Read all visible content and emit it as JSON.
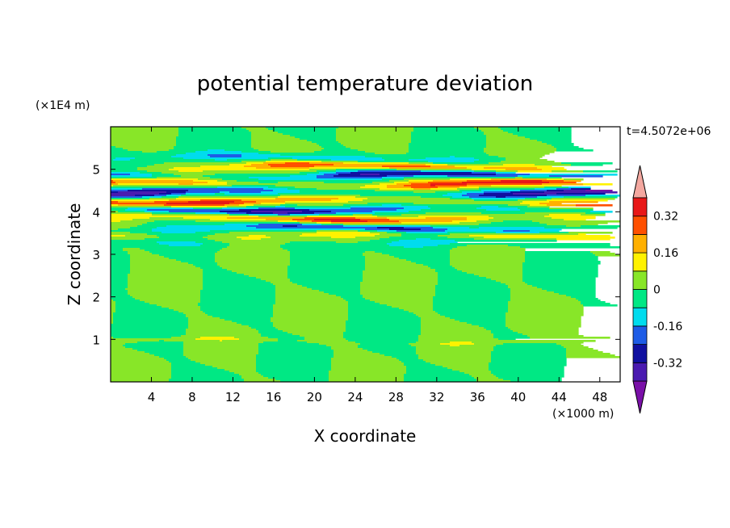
{
  "chart_data": {
    "type": "heatmap",
    "title": "potential temperature deviation",
    "xlabel": "X coordinate",
    "ylabel": "Z coordinate",
    "x_unit": "(×1000 m)",
    "y_unit": "(×1E4 m)",
    "time_label": "t=4.5072e+06",
    "xlim": [
      0,
      50
    ],
    "ylim": [
      0,
      6
    ],
    "x_ticks": [
      "4",
      "8",
      "12",
      "16",
      "20",
      "24",
      "28",
      "32",
      "36",
      "40",
      "44",
      "48"
    ],
    "y_ticks": [
      "1",
      "2",
      "3",
      "4",
      "5"
    ],
    "colorbar": {
      "levels": [
        -0.4,
        -0.32,
        -0.24,
        -0.16,
        -0.08,
        0,
        0.08,
        0.16,
        0.24,
        0.32,
        0.4
      ],
      "tick_labels": [
        "0.32",
        "0.16",
        "0",
        "-0.16",
        "-0.32"
      ],
      "colors": [
        "#7a10a8",
        "#4a1ab0",
        "#1010a0",
        "#1e5ce6",
        "#00dcee",
        "#00e884",
        "#88e628",
        "#fff200",
        "#ffb000",
        "#ff5000",
        "#e81818",
        "#f4a8a0"
      ]
    },
    "bands": [
      {
        "z": 0.95,
        "amp": 0.07
      },
      {
        "z": 3.25,
        "amp": -0.12
      },
      {
        "z": 3.45,
        "amp": 0.22
      },
      {
        "z": 3.6,
        "amp": -0.34
      },
      {
        "z": 3.85,
        "amp": 0.34
      },
      {
        "z": 4.05,
        "amp": -0.36
      },
      {
        "z": 4.25,
        "amp": 0.36
      },
      {
        "z": 4.45,
        "amp": -0.38
      },
      {
        "z": 4.65,
        "amp": 0.38
      },
      {
        "z": 4.85,
        "amp": -0.36
      },
      {
        "z": 5.05,
        "amp": 0.34
      },
      {
        "z": 5.25,
        "amp": -0.18
      }
    ]
  }
}
